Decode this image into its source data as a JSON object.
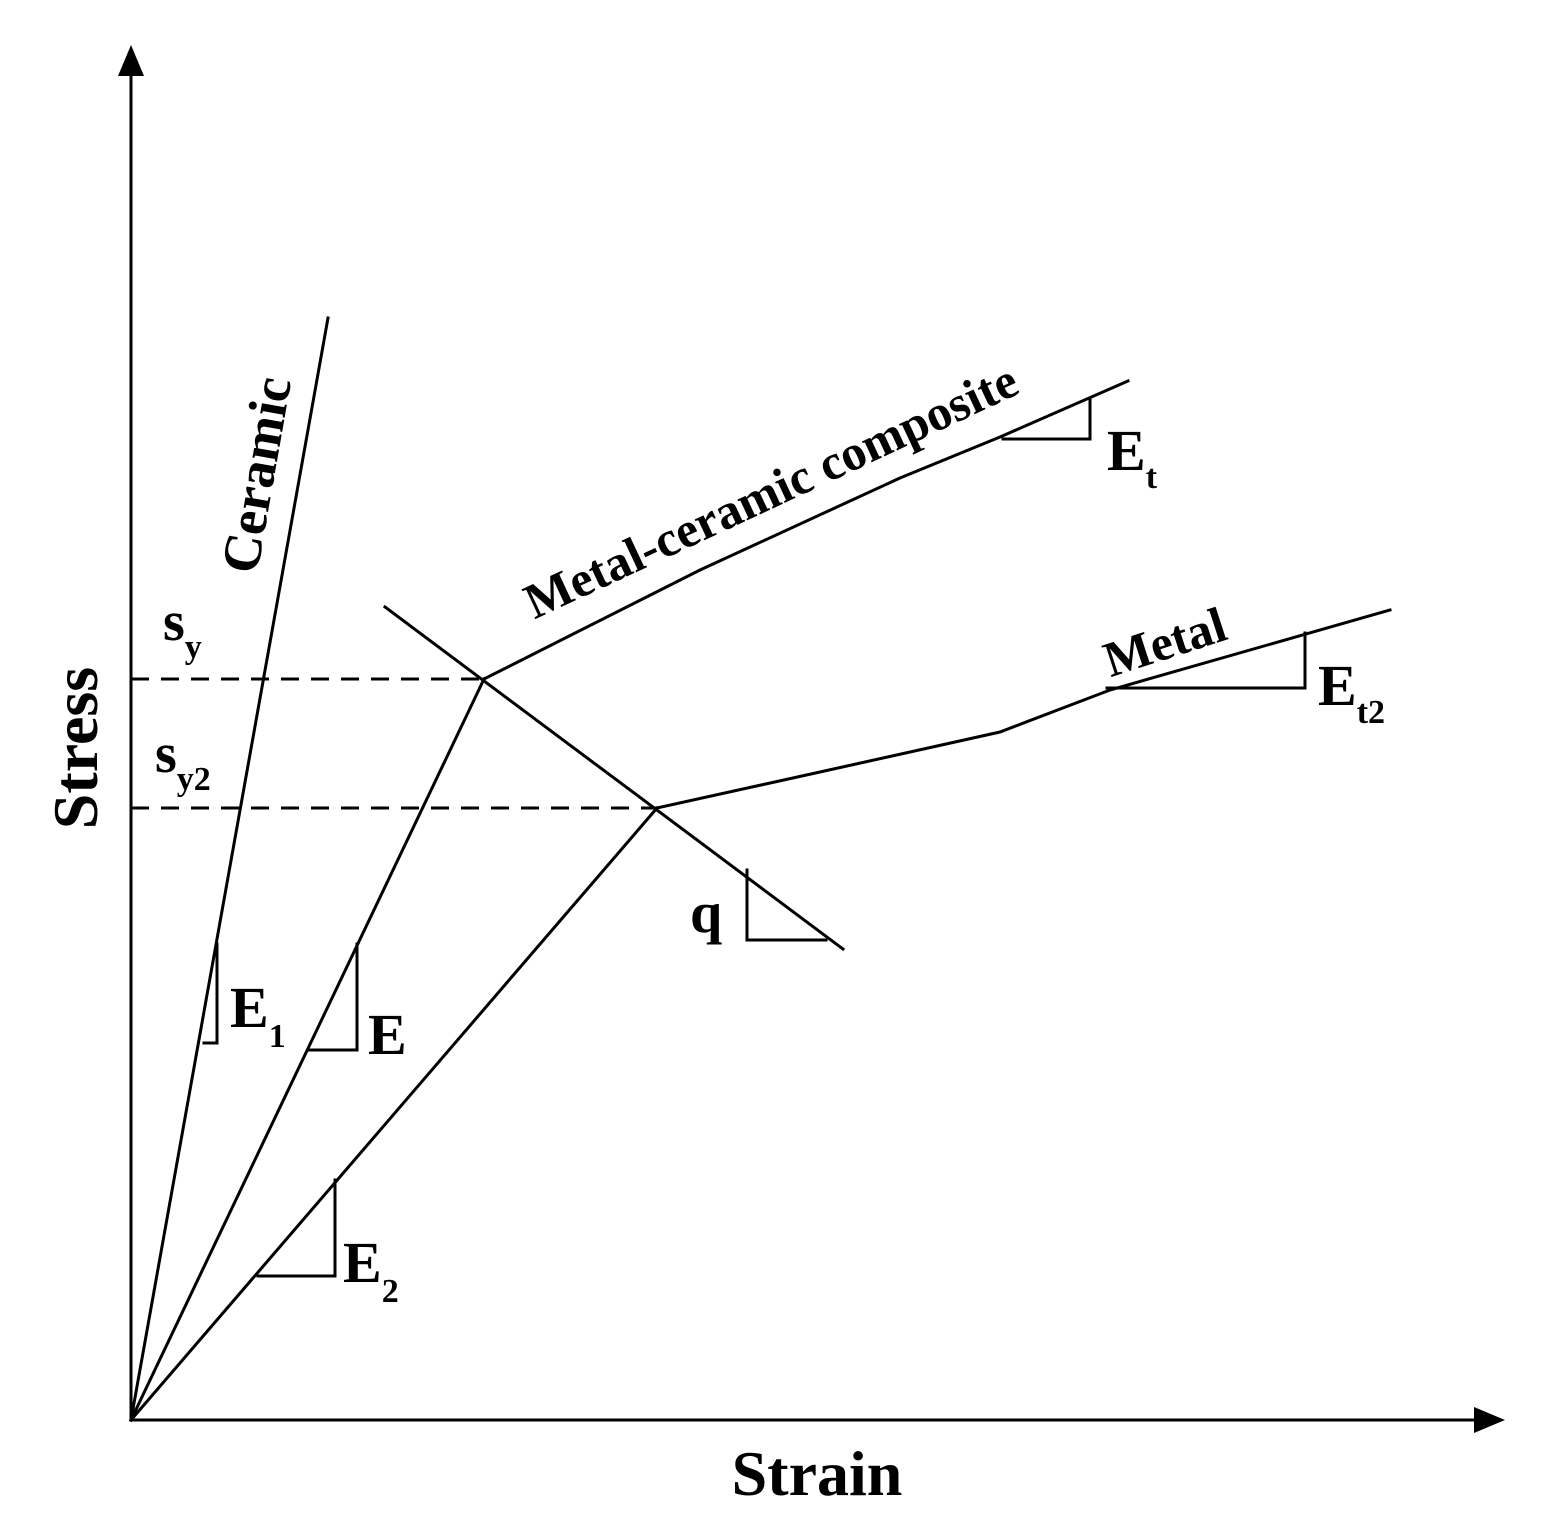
{
  "axes": {
    "x_label": "Strain",
    "y_label": "Stress"
  },
  "curves": {
    "ceramic": "Ceramic",
    "composite": "Metal-ceramic composite",
    "metal": "Metal"
  },
  "stress_levels": {
    "sy_base": "s",
    "sy_sub": "y",
    "sy2_base": "s",
    "sy2_sub": "y2"
  },
  "slopes": {
    "e1_base": "E",
    "e1_sub": "1",
    "e_label": "E",
    "e2_base": "E",
    "e2_sub": "2",
    "et_base": "E",
    "et_sub": "t",
    "et2_base": "E",
    "et2_sub": "t2",
    "q_label": "q"
  }
}
